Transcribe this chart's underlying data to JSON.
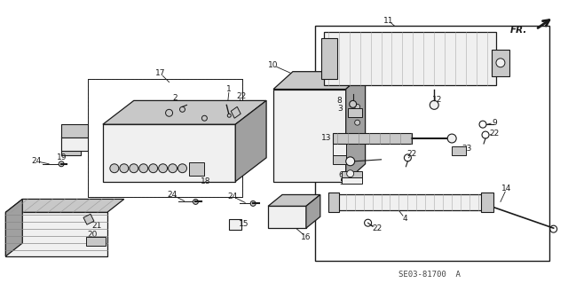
{
  "bg_color": "#ffffff",
  "lc": "#1a1a1a",
  "fig_width": 6.4,
  "fig_height": 3.19,
  "dpi": 100,
  "footer_text": "SE03-81700  A"
}
